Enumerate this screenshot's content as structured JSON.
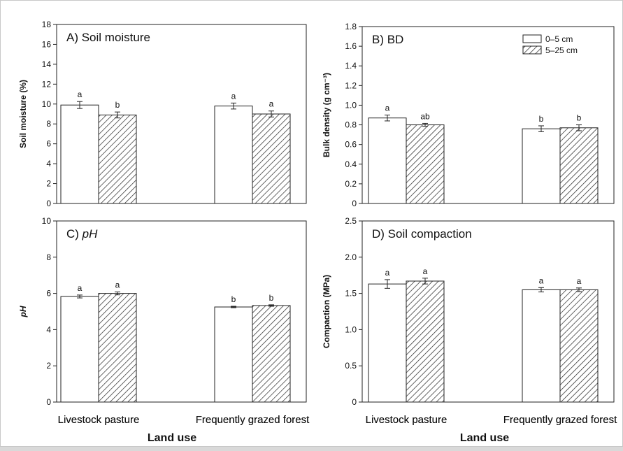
{
  "figure": {
    "xlabel": "Land use",
    "categories": [
      "Livestock pasture",
      "Frequently grazed forest"
    ],
    "legend": [
      "0–5 cm",
      "5–25 cm"
    ],
    "bar_colors": [
      "#ffffff",
      "hatched"
    ],
    "stroke_color": "#222222"
  },
  "chart_data": [
    {
      "type": "bar",
      "title": "A) Soil moisture",
      "ylabel": "Soil moisture (%)",
      "ylim": [
        0,
        18
      ],
      "yticks": [
        "0",
        "2",
        "4",
        "6",
        "8",
        "10",
        "12",
        "14",
        "16",
        "18"
      ],
      "categories": [
        "Livestock pasture",
        "Frequently grazed forest"
      ],
      "series": [
        {
          "name": "0–5 cm",
          "values": [
            9.9,
            9.8
          ],
          "errors": [
            0.35,
            0.3
          ],
          "labels": [
            "a",
            "a"
          ]
        },
        {
          "name": "5–25 cm",
          "values": [
            8.9,
            9.0
          ],
          "errors": [
            0.3,
            0.3
          ],
          "labels": [
            "b",
            "a"
          ]
        }
      ]
    },
    {
      "type": "bar",
      "title": "B) BD",
      "ylabel": "Bulk density (g cm⁻³)",
      "ylim": [
        0,
        1.8
      ],
      "yticks": [
        "0",
        "0.2",
        "0.4",
        "0.6",
        "0.8",
        "1.0",
        "1.2",
        "1.4",
        "1.6",
        "1.8"
      ],
      "categories": [
        "Livestock pasture",
        "Frequently grazed forest"
      ],
      "legend": [
        "0–5 cm",
        "5–25 cm"
      ],
      "legend_position": "top-right",
      "series": [
        {
          "name": "0–5 cm",
          "values": [
            0.87,
            0.76
          ],
          "errors": [
            0.03,
            0.03
          ],
          "labels": [
            "a",
            "b"
          ]
        },
        {
          "name": "5–25 cm",
          "values": [
            0.8,
            0.77
          ],
          "errors": [
            0.015,
            0.03
          ],
          "labels": [
            "ab",
            "b"
          ]
        }
      ]
    },
    {
      "type": "bar",
      "title": "C) pH",
      "title_prefix": "C) ",
      "title_italic": "pH",
      "ylabel": "pH",
      "ylim": [
        0,
        10
      ],
      "yticks": [
        "0",
        "2",
        "4",
        "6",
        "8",
        "10"
      ],
      "categories": [
        "Livestock pasture",
        "Frequently grazed forest"
      ],
      "series": [
        {
          "name": "0–5 cm",
          "values": [
            5.83,
            5.25
          ],
          "errors": [
            0.08,
            0.04
          ],
          "labels": [
            "a",
            "b"
          ]
        },
        {
          "name": "5–25 cm",
          "values": [
            6.0,
            5.33
          ],
          "errors": [
            0.08,
            0.04
          ],
          "labels": [
            "a",
            "b"
          ]
        }
      ]
    },
    {
      "type": "bar",
      "title": "D) Soil compaction",
      "ylabel": "Compaction (MPa)",
      "ylim": [
        0,
        2.5
      ],
      "yticks": [
        "0",
        "0.5",
        "1.0",
        "1.5",
        "2.0",
        "2.5"
      ],
      "categories": [
        "Livestock pasture",
        "Frequently grazed forest"
      ],
      "series": [
        {
          "name": "0–5 cm",
          "values": [
            1.63,
            1.55
          ],
          "errors": [
            0.06,
            0.03
          ],
          "labels": [
            "a",
            "a"
          ]
        },
        {
          "name": "5–25 cm",
          "values": [
            1.67,
            1.55
          ],
          "errors": [
            0.04,
            0.025
          ],
          "labels": [
            "a",
            "a"
          ]
        }
      ]
    }
  ]
}
